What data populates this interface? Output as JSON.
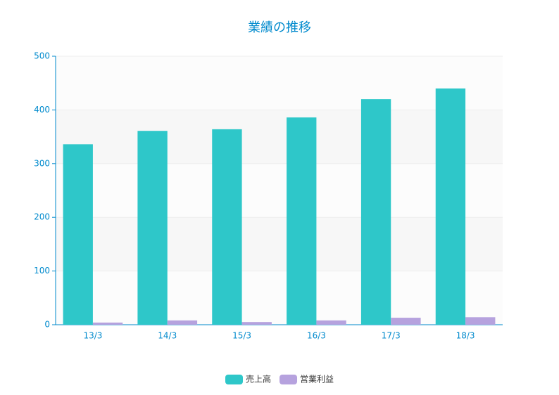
{
  "chart_data": {
    "type": "bar",
    "title": "業績の推移",
    "categories": [
      "13/3",
      "14/3",
      "15/3",
      "16/3",
      "17/3",
      "18/3"
    ],
    "series": [
      {
        "name": "売上高",
        "color": "#2ec7c9",
        "values": [
          336,
          361,
          364,
          386,
          420,
          440
        ]
      },
      {
        "name": "営業利益",
        "color": "#b6a2de",
        "values": [
          4,
          8,
          5,
          8,
          13,
          14
        ]
      }
    ],
    "ylim": [
      0,
      500
    ],
    "yticks": [
      0,
      100,
      200,
      300,
      400,
      500
    ],
    "grid": true,
    "legend": "bottom"
  }
}
